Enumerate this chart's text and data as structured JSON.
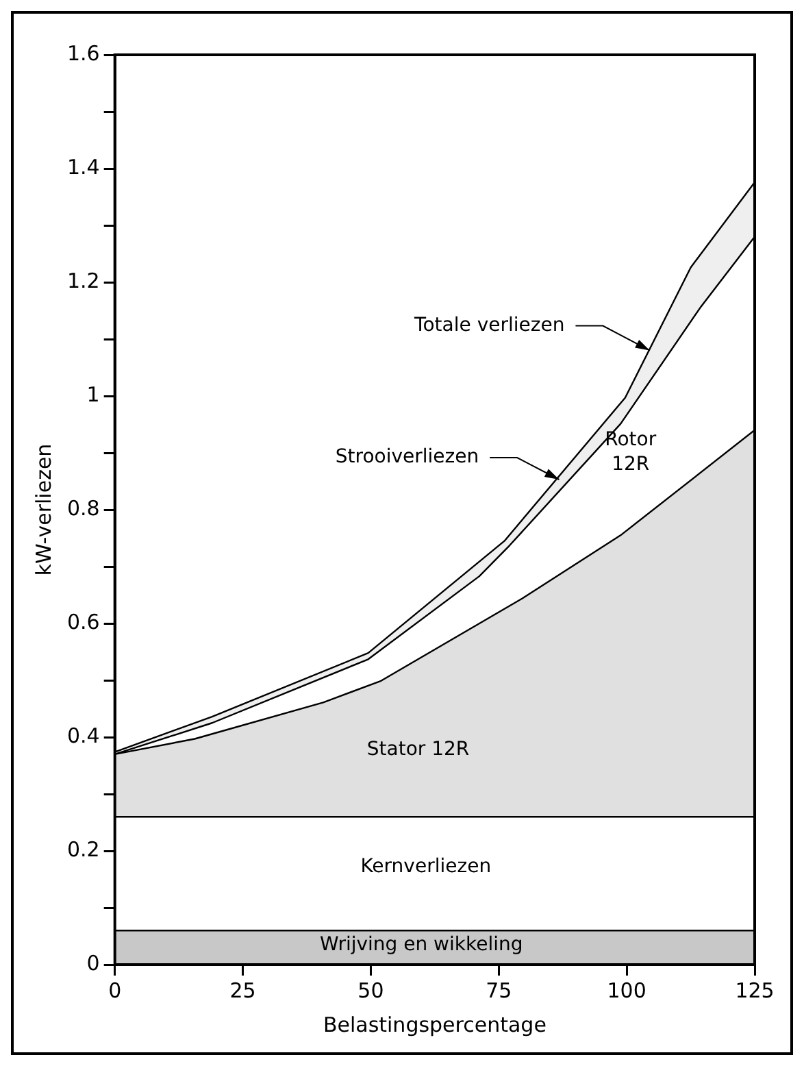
{
  "chart_data": {
    "type": "area",
    "xlabel": "Belastingspercentage",
    "ylabel": "kW-verliezen",
    "xlim": [
      0,
      125
    ],
    "xticks": [
      0,
      25,
      50,
      75,
      100,
      125
    ],
    "ylim": [
      0,
      1.6
    ],
    "yticks": [
      0,
      {
        "value": 0.1,
        "label": null
      },
      0.2,
      {
        "value": 0.3,
        "label": null
      },
      0.4,
      {
        "value": 0.5,
        "label": null
      },
      0.6,
      {
        "value": 0.7,
        "label": null
      },
      0.8,
      {
        "value": 0.9,
        "label": null
      },
      1,
      {
        "value": 1.1,
        "label": null
      },
      1.2,
      {
        "value": 1.3,
        "label": null
      },
      1.4,
      {
        "value": 1.5,
        "label": null
      },
      1.6
    ],
    "grid": false,
    "legend": false,
    "series": [
      {
        "color": "#c8c8c8",
        "x": [
          0,
          125
        ],
        "values": [
          0.06,
          0.06
        ]
      },
      {
        "color": "#ffffff",
        "x": [
          0,
          125
        ],
        "values": [
          0.26,
          0.26
        ]
      },
      {
        "color": "#e0e0e0",
        "x": [
          0,
          15.6,
          40.7,
          52,
          79.6,
          98.8,
          125
        ],
        "values": [
          0.37,
          0.397,
          0.461,
          0.499,
          0.644,
          0.755,
          0.94
        ]
      },
      {
        "color": "#ffffff",
        "x": [
          0,
          19,
          49.5,
          71.2,
          77.1,
          98.8,
          114.5,
          125
        ],
        "values": [
          0.37,
          0.425,
          0.537,
          0.683,
          0.737,
          0.951,
          1.157,
          1.28
        ]
      },
      {
        "color": "#efefef",
        "x": [
          0,
          19,
          49.5,
          76.1,
          99.7,
          112.5,
          125
        ],
        "values": [
          0.374,
          0.436,
          0.548,
          0.745,
          0.997,
          1.226,
          1.376
        ]
      }
    ],
    "annotations": [
      {
        "text": "Totale verliezen",
        "x": 104.5,
        "y": 1.08
      },
      {
        "text": "Strooiverliezen",
        "x": 86.8,
        "y": 0.853
      },
      "Rotor 12R",
      "Stator 12R",
      "Kernverliezen",
      "Wrijving en wikkeling"
    ]
  }
}
